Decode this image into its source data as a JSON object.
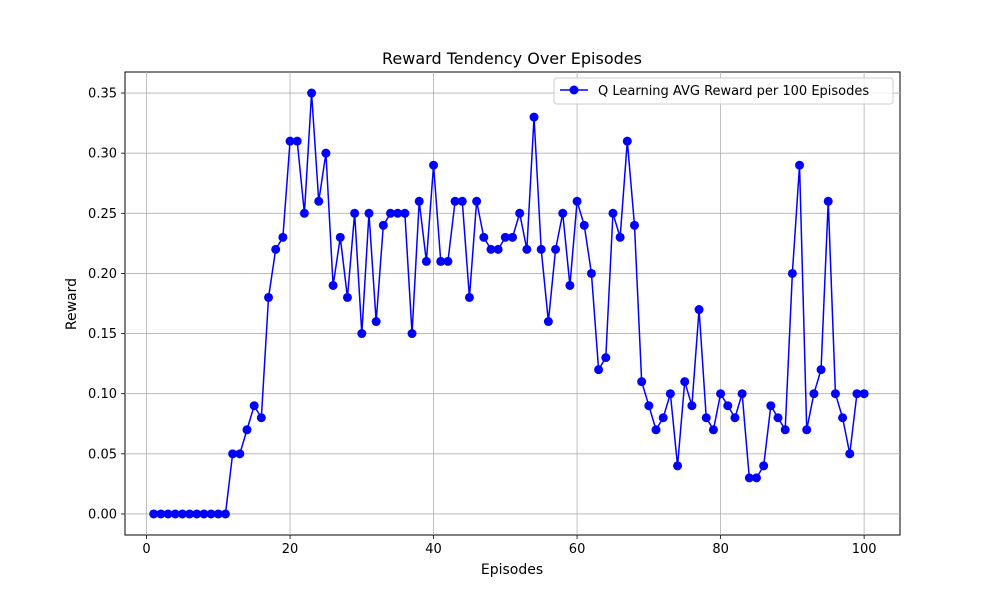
{
  "chart_data": {
    "type": "line",
    "title": "Reward Tendency Over Episodes",
    "xlabel": "Episodes",
    "ylabel": "Reward",
    "xlim": [
      -3,
      105
    ],
    "ylim": [
      -0.0175,
      0.3675
    ],
    "xticks": [
      0,
      20,
      40,
      60,
      80,
      100
    ],
    "yticks": [
      0.0,
      0.05,
      0.1,
      0.15,
      0.2,
      0.25,
      0.3,
      0.35
    ],
    "xtick_labels": [
      "0",
      "20",
      "40",
      "60",
      "80",
      "100"
    ],
    "ytick_labels": [
      "0.00",
      "0.05",
      "0.10",
      "0.15",
      "0.20",
      "0.25",
      "0.30",
      "0.35"
    ],
    "grid": true,
    "legend_position": "top-right",
    "series": [
      {
        "name": "Q Learning AVG Reward per 100 Episodes",
        "color": "#0000ff",
        "marker": "circle",
        "x": [
          1,
          2,
          3,
          4,
          5,
          6,
          7,
          8,
          9,
          10,
          11,
          12,
          13,
          14,
          15,
          16,
          17,
          18,
          19,
          20,
          21,
          22,
          23,
          24,
          25,
          26,
          27,
          28,
          29,
          30,
          31,
          32,
          33,
          34,
          35,
          36,
          37,
          38,
          39,
          40,
          41,
          42,
          43,
          44,
          45,
          46,
          47,
          48,
          49,
          50,
          51,
          52,
          53,
          54,
          55,
          56,
          57,
          58,
          59,
          60,
          61,
          62,
          63,
          64,
          65,
          66,
          67,
          68,
          69,
          70,
          71,
          72,
          73,
          74,
          75,
          76,
          77,
          78,
          79,
          80,
          81,
          82,
          83,
          84,
          85,
          86,
          87,
          88,
          89,
          90,
          91,
          92,
          93,
          94,
          95,
          96,
          97,
          98,
          99,
          100
        ],
        "values": [
          0,
          0,
          0,
          0,
          0,
          0,
          0,
          0,
          0,
          0,
          0,
          0.05,
          0.05,
          0.07,
          0.09,
          0.08,
          0.18,
          0.22,
          0.23,
          0.31,
          0.31,
          0.25,
          0.35,
          0.26,
          0.3,
          0.19,
          0.23,
          0.18,
          0.25,
          0.15,
          0.25,
          0.16,
          0.24,
          0.25,
          0.25,
          0.25,
          0.15,
          0.26,
          0.21,
          0.29,
          0.21,
          0.21,
          0.26,
          0.26,
          0.18,
          0.26,
          0.23,
          0.22,
          0.22,
          0.23,
          0.23,
          0.25,
          0.22,
          0.33,
          0.22,
          0.16,
          0.22,
          0.25,
          0.19,
          0.26,
          0.24,
          0.2,
          0.12,
          0.13,
          0.25,
          0.23,
          0.31,
          0.24,
          0.11,
          0.09,
          0.07,
          0.08,
          0.1,
          0.04,
          0.11,
          0.09,
          0.17,
          0.08,
          0.07,
          0.1,
          0.09,
          0.08,
          0.1,
          0.03,
          0.03,
          0.04,
          0.09,
          0.08,
          0.07,
          0.2,
          0.29,
          0.07,
          0.1,
          0.12,
          0.26,
          0.1,
          0.08,
          0.05,
          0.1,
          0.1
        ]
      }
    ]
  }
}
